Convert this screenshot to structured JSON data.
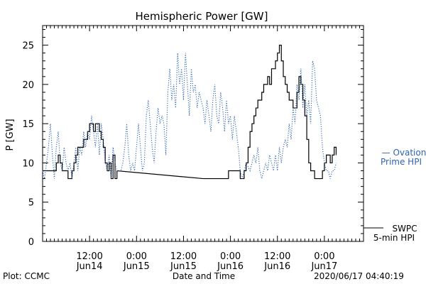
{
  "chart_data": {
    "type": "line",
    "title": "Hemispheric Power [GW]",
    "xlabel": "Date and Time",
    "ylabel": "P [GW]",
    "ylim": [
      0,
      27.5
    ],
    "xlim_hours": [
      -7,
      75
    ],
    "yticks": [
      0,
      5,
      10,
      15,
      20,
      25
    ],
    "xticks": [
      {
        "time": "12:00",
        "date": "Jun14"
      },
      {
        "time": "0:00",
        "date": "Jun15"
      },
      {
        "time": "12:00",
        "date": "Jun15"
      },
      {
        "time": "0:00",
        "date": "Jun16"
      },
      {
        "time": "12:00",
        "date": "Jun16"
      },
      {
        "time": "0:00",
        "date": "Jun17"
      }
    ],
    "grid": false,
    "series": [
      {
        "name": "SWPC 5-min HPI",
        "style": "solid-step",
        "color": "#000000",
        "points": [
          [
            -7,
            9
          ],
          [
            -4,
            9
          ],
          [
            -3.5,
            10
          ],
          [
            -3,
            11
          ],
          [
            -2.5,
            10
          ],
          [
            -2,
            9
          ],
          [
            -1,
            9
          ],
          [
            -0.5,
            8
          ],
          [
            0,
            8
          ],
          [
            0.5,
            9
          ],
          [
            1,
            10
          ],
          [
            1.5,
            11
          ],
          [
            2,
            12
          ],
          [
            3,
            12
          ],
          [
            3.5,
            13
          ],
          [
            4,
            13
          ],
          [
            4.5,
            14
          ],
          [
            5,
            15
          ],
          [
            5.5,
            15
          ],
          [
            6,
            14
          ],
          [
            6.5,
            15
          ],
          [
            7,
            15
          ],
          [
            7.5,
            14
          ],
          [
            8,
            13
          ],
          [
            8.5,
            12
          ],
          [
            9,
            10
          ],
          [
            9.5,
            9
          ],
          [
            10,
            10
          ],
          [
            10.5,
            8
          ],
          [
            11,
            11
          ],
          [
            11.5,
            8
          ],
          [
            12,
            9
          ],
          [
            34,
            8
          ],
          [
            40,
            8
          ],
          [
            40.5,
            9
          ],
          [
            43,
            9
          ],
          [
            43.5,
            8
          ],
          [
            44,
            8
          ],
          [
            44.5,
            9
          ],
          [
            45,
            10
          ],
          [
            45.5,
            12
          ],
          [
            46,
            14
          ],
          [
            46.5,
            15
          ],
          [
            47,
            16
          ],
          [
            47.5,
            17
          ],
          [
            48,
            18
          ],
          [
            48.5,
            18
          ],
          [
            49,
            19
          ],
          [
            49.5,
            20
          ],
          [
            50,
            20
          ],
          [
            50.5,
            21
          ],
          [
            51,
            20
          ],
          [
            51.5,
            22
          ],
          [
            52,
            22
          ],
          [
            52.5,
            23
          ],
          [
            53,
            24
          ],
          [
            53.5,
            25
          ],
          [
            54,
            23
          ],
          [
            54.5,
            21
          ],
          [
            55,
            20
          ],
          [
            55.5,
            19
          ],
          [
            56,
            18
          ],
          [
            56.5,
            18
          ],
          [
            57,
            17
          ],
          [
            57.5,
            17
          ],
          [
            58,
            19
          ],
          [
            58.5,
            21
          ],
          [
            59,
            20
          ],
          [
            59.5,
            18
          ],
          [
            60,
            16
          ],
          [
            60.5,
            13
          ],
          [
            61,
            10
          ],
          [
            61.5,
            9
          ],
          [
            62,
            9
          ],
          [
            62.5,
            8
          ],
          [
            64,
            8
          ],
          [
            64.5,
            9
          ],
          [
            65,
            10
          ],
          [
            65.5,
            11
          ],
          [
            66,
            11
          ],
          [
            66.5,
            10
          ],
          [
            67,
            11
          ],
          [
            67.5,
            12
          ],
          [
            68,
            11
          ]
        ]
      },
      {
        "name": "Ovation Prime HPI",
        "style": "dotted",
        "color": "#2e64b4",
        "points": [
          [
            -7,
            9
          ],
          [
            -6.5,
            8
          ],
          [
            -6,
            10
          ],
          [
            -5.5,
            12
          ],
          [
            -5,
            15
          ],
          [
            -4.5,
            11
          ],
          [
            -4,
            8
          ],
          [
            -3.5,
            12
          ],
          [
            -3,
            14
          ],
          [
            -2.5,
            10
          ],
          [
            -2,
            9
          ],
          [
            -1.5,
            12
          ],
          [
            -1,
            10
          ],
          [
            -0.5,
            9
          ],
          [
            0,
            10
          ],
          [
            0.5,
            8
          ],
          [
            1,
            10
          ],
          [
            1.5,
            12
          ],
          [
            2,
            9
          ],
          [
            2.5,
            12
          ],
          [
            3,
            11
          ],
          [
            3.5,
            14
          ],
          [
            4,
            12
          ],
          [
            4.5,
            14
          ],
          [
            5,
            13
          ],
          [
            5.5,
            16
          ],
          [
            6,
            14
          ],
          [
            6.5,
            12
          ],
          [
            7,
            15
          ],
          [
            7.5,
            11
          ],
          [
            8,
            15
          ],
          [
            8.5,
            13
          ],
          [
            9,
            10
          ],
          [
            9.5,
            9
          ],
          [
            10,
            11
          ],
          [
            10.5,
            8
          ],
          [
            11,
            12
          ],
          [
            11.5,
            10
          ],
          [
            12,
            9
          ],
          [
            13,
            9
          ],
          [
            13.5,
            10
          ],
          [
            14,
            12
          ],
          [
            14.5,
            15
          ],
          [
            15,
            11
          ],
          [
            15.5,
            9
          ],
          [
            16,
            10
          ],
          [
            16.5,
            9
          ],
          [
            17,
            12
          ],
          [
            17.5,
            15
          ],
          [
            18,
            12
          ],
          [
            18.5,
            9
          ],
          [
            19,
            10
          ],
          [
            19.5,
            16
          ],
          [
            20,
            18
          ],
          [
            20.5,
            15
          ],
          [
            21,
            12
          ],
          [
            21.5,
            10
          ],
          [
            22,
            14
          ],
          [
            22.5,
            17
          ],
          [
            23,
            15
          ],
          [
            23.5,
            16
          ],
          [
            24,
            15
          ],
          [
            24.5,
            11
          ],
          [
            25,
            19
          ],
          [
            25.5,
            22
          ],
          [
            26,
            18
          ],
          [
            26.5,
            20
          ],
          [
            27,
            17
          ],
          [
            27.5,
            24
          ],
          [
            28,
            20
          ],
          [
            28.5,
            22
          ],
          [
            29,
            18
          ],
          [
            29.5,
            24
          ],
          [
            30,
            20
          ],
          [
            30.5,
            16
          ],
          [
            31,
            22
          ],
          [
            31.5,
            19
          ],
          [
            32,
            20
          ],
          [
            32.5,
            17
          ],
          [
            33,
            19
          ],
          [
            33.5,
            18
          ],
          [
            34,
            17
          ],
          [
            34.5,
            15
          ],
          [
            35,
            18
          ],
          [
            35.5,
            16
          ],
          [
            36,
            14
          ],
          [
            36.5,
            18
          ],
          [
            37,
            20
          ],
          [
            37.5,
            16
          ],
          [
            38,
            15
          ],
          [
            38.5,
            19
          ],
          [
            39,
            17
          ],
          [
            39.5,
            14
          ],
          [
            40,
            18
          ],
          [
            40.5,
            15
          ],
          [
            41,
            16
          ],
          [
            41.5,
            13
          ],
          [
            42,
            16
          ],
          [
            42.5,
            14
          ],
          [
            43,
            12
          ],
          [
            43.5,
            9
          ],
          [
            44,
            8
          ],
          [
            44.5,
            9
          ],
          [
            45,
            10
          ],
          [
            46,
            9
          ],
          [
            46.5,
            10
          ],
          [
            47,
            11
          ],
          [
            47.5,
            10
          ],
          [
            48,
            12
          ],
          [
            48.5,
            9
          ],
          [
            49,
            8
          ],
          [
            49.5,
            9
          ],
          [
            50,
            10
          ],
          [
            50.5,
            9
          ],
          [
            51,
            11
          ],
          [
            51.5,
            10
          ],
          [
            52,
            9
          ],
          [
            52.5,
            11
          ],
          [
            53,
            9
          ],
          [
            53.5,
            12
          ],
          [
            54,
            10
          ],
          [
            54.5,
            12
          ],
          [
            55,
            13
          ],
          [
            55.5,
            12
          ],
          [
            56,
            15
          ],
          [
            56.5,
            13
          ],
          [
            57,
            17
          ],
          [
            57.5,
            15
          ],
          [
            58,
            20
          ],
          [
            58.5,
            18
          ],
          [
            59,
            22
          ],
          [
            59.5,
            17
          ],
          [
            60,
            20
          ],
          [
            60.5,
            16
          ],
          [
            61,
            18
          ],
          [
            61.5,
            15
          ],
          [
            62,
            23
          ],
          [
            62.5,
            22
          ],
          [
            63,
            18
          ],
          [
            63.5,
            17
          ],
          [
            64,
            16
          ],
          [
            64.5,
            12
          ],
          [
            65,
            10
          ],
          [
            65.5,
            9
          ],
          [
            66,
            9
          ],
          [
            66.5,
            8
          ],
          [
            67,
            9
          ],
          [
            67.5,
            9
          ],
          [
            68,
            10
          ]
        ]
      }
    ]
  },
  "legend": {
    "ovation_line1": "— Ovation",
    "ovation_line2": "Prime HPI",
    "swpc_line1": "SWPC",
    "swpc_line2": "5-min HPI"
  },
  "footer": {
    "left": "Plot: CCMC",
    "center": "Date and Time",
    "right": "2020/06/17 04:40:19"
  }
}
